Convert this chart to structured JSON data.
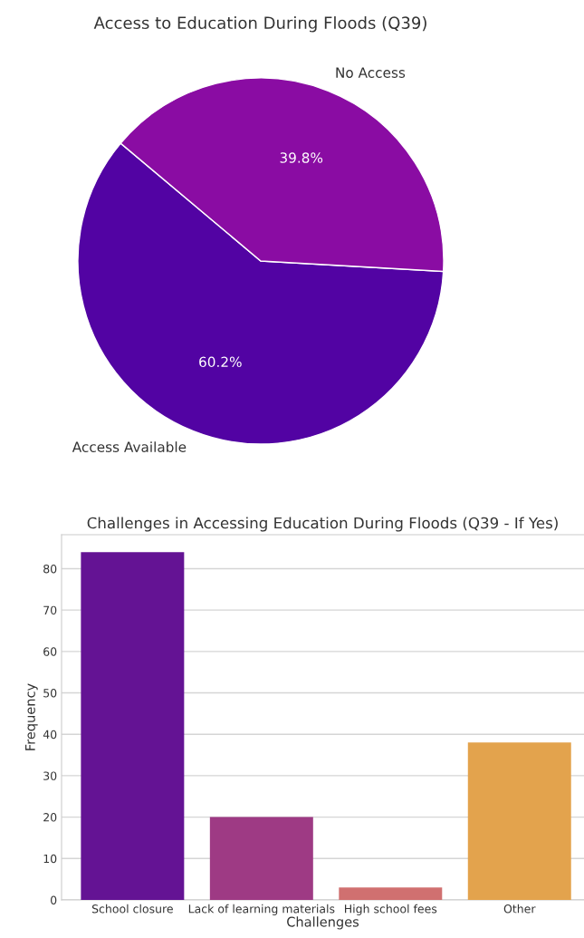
{
  "chart_data": [
    {
      "type": "pie",
      "title": "Access to Education During Floods (Q39)",
      "categories": [
        "Access Available",
        "No Access"
      ],
      "values": [
        60.2,
        39.8
      ],
      "colors": [
        "#5203a3",
        "#8a0ca3"
      ],
      "value_labels": [
        "60.2%",
        "39.8%"
      ]
    },
    {
      "type": "bar",
      "title": "Challenges in Accessing Education During Floods (Q39 - If Yes)",
      "xlabel": "Challenges",
      "ylabel": "Frequency",
      "categories": [
        "School closure",
        "Lack of learning materials",
        "High school fees",
        "Other"
      ],
      "values": [
        84,
        20,
        3,
        38
      ],
      "colors": [
        "#641394",
        "#9e3a84",
        "#d07070",
        "#e3a34d"
      ],
      "ylim": [
        0,
        88.2
      ],
      "yticks": [
        0,
        10,
        20,
        30,
        40,
        50,
        60,
        70,
        80
      ],
      "grid": "y"
    }
  ]
}
